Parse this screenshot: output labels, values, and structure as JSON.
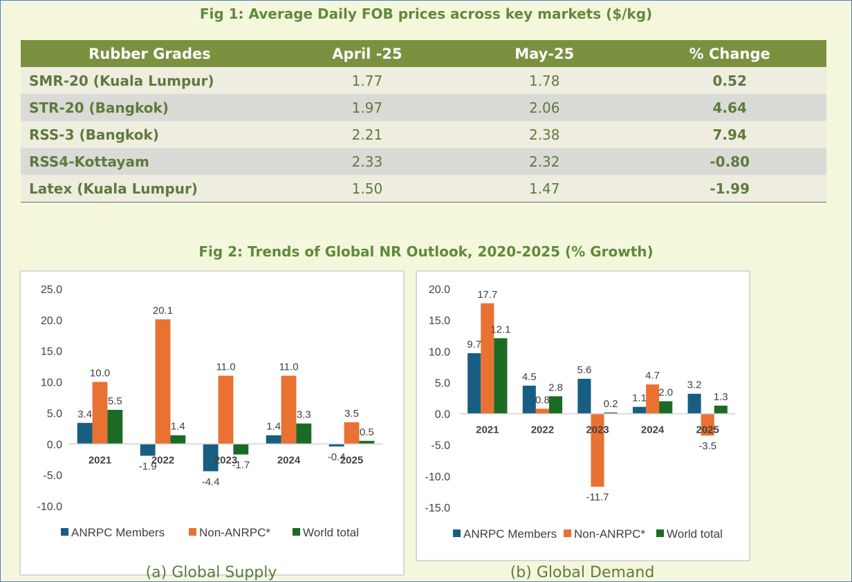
{
  "fig1": {
    "title": "Fig 1: Average Daily FOB prices across key markets ($/kg)",
    "headers": [
      "Rubber Grades",
      "April -25",
      "May-25",
      "% Change"
    ],
    "rows": [
      [
        "SMR-20 (Kuala Lumpur)",
        "1.77",
        "1.78",
        "0.52"
      ],
      [
        "STR-20 (Bangkok)",
        "1.97",
        "2.06",
        "4.64"
      ],
      [
        "RSS-3 (Bangkok)",
        "2.21",
        "2.38",
        "7.94"
      ],
      [
        "RSS4-Kottayam",
        "2.33",
        "2.32",
        "-0.80"
      ],
      [
        "Latex (Kuala Lumpur)",
        "1.50",
        "1.47",
        "-1.99"
      ]
    ]
  },
  "fig2": {
    "title": "Fig 2: Trends of Global NR Outlook, 2020-2025 (% Growth)"
  },
  "colors": {
    "anrpc": "#175e82",
    "non_anrpc": "#e97132",
    "world": "#1b6b24"
  },
  "chart_data": [
    {
      "type": "bar",
      "caption": "(a) Global Supply",
      "categories": [
        "2021",
        "2022",
        "2023",
        "2024",
        "2025"
      ],
      "series": [
        {
          "name": "ANRPC Members",
          "values": [
            3.4,
            -1.9,
            -4.4,
            1.4,
            -0.4
          ]
        },
        {
          "name": "Non-ANRPC*",
          "values": [
            10.0,
            20.1,
            11.0,
            11.0,
            3.5
          ]
        },
        {
          "name": "World total",
          "values": [
            5.5,
            1.4,
            -1.7,
            3.3,
            0.5
          ]
        }
      ],
      "yticks": [
        "25.0",
        "20.0",
        "15.0",
        "10.0",
        "5.0",
        "0.0",
        "-5.0",
        "-10.0"
      ],
      "ylim": [
        -10,
        25
      ],
      "legend": "bottom"
    },
    {
      "type": "bar",
      "caption": "(b) Global Demand",
      "categories": [
        "2021",
        "2022",
        "2023",
        "2024",
        "2025"
      ],
      "series": [
        {
          "name": "ANRPC Members",
          "values": [
            9.7,
            4.5,
            5.6,
            1.1,
            3.2
          ]
        },
        {
          "name": "Non-ANRPC*",
          "values": [
            17.7,
            0.8,
            -11.7,
            4.7,
            -3.5
          ]
        },
        {
          "name": "World total",
          "values": [
            12.1,
            2.8,
            0.2,
            2.0,
            1.3
          ]
        }
      ],
      "yticks": [
        "20.0",
        "15.0",
        "10.0",
        "5.0",
        "0.0",
        "-5.0",
        "-10.0",
        "-15.0"
      ],
      "ylim": [
        -15,
        20
      ],
      "legend": "bottom"
    }
  ]
}
